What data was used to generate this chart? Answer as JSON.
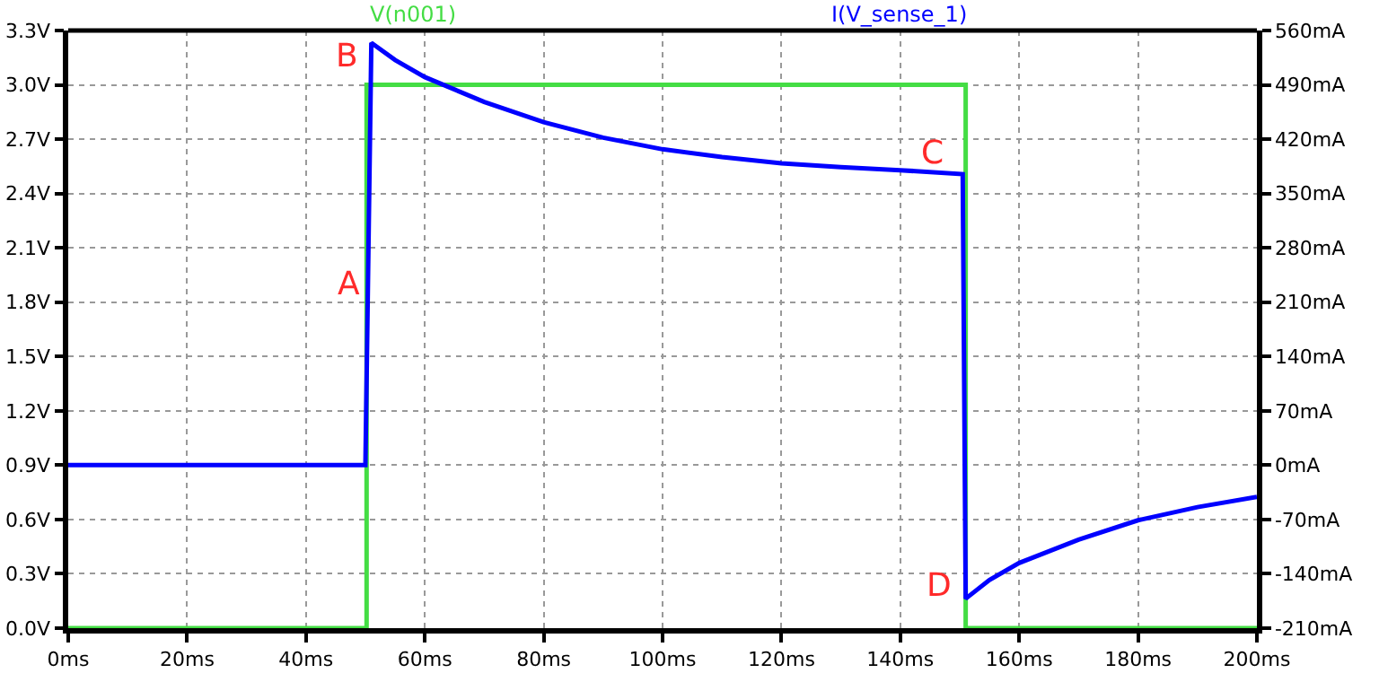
{
  "chart_data": {
    "type": "line",
    "x": [
      0,
      50,
      51,
      55,
      60,
      70,
      80,
      90,
      100,
      110,
      120,
      130,
      140,
      150.5,
      151,
      155,
      160,
      170,
      180,
      190,
      200
    ],
    "series": [
      {
        "name": "V(n001)",
        "color": "#44dd44",
        "x": [
          0,
          50.2,
          50.2,
          151,
          151,
          200
        ],
        "values": [
          0,
          0,
          3.0,
          3.0,
          0,
          0
        ]
      },
      {
        "name": "I(V_sense_1)",
        "color": "#0000ff",
        "axis": "y2",
        "values": [
          0,
          0,
          544,
          522,
          500,
          468,
          442,
          422,
          407,
          397,
          389,
          384,
          380,
          375,
          -172,
          -148,
          -126,
          -96,
          -71,
          -54,
          -41
        ]
      }
    ],
    "xlim": [
      0,
      200
    ],
    "xticks": [
      {
        "value": 0,
        "label": "0ms"
      },
      {
        "value": 20,
        "label": "20ms"
      },
      {
        "value": 40,
        "label": "40ms"
      },
      {
        "value": 60,
        "label": "60ms"
      },
      {
        "value": 80,
        "label": "80ms"
      },
      {
        "value": 100,
        "label": "100ms"
      },
      {
        "value": 120,
        "label": "120ms"
      },
      {
        "value": 140,
        "label": "140ms"
      },
      {
        "value": 160,
        "label": "160ms"
      },
      {
        "value": 180,
        "label": "180ms"
      },
      {
        "value": 200,
        "label": "200ms"
      }
    ],
    "ylim": [
      0,
      3.3
    ],
    "yticks": [
      {
        "value": 0,
        "label": "0.0V"
      },
      {
        "value": 0.3,
        "label": "0.3V"
      },
      {
        "value": 0.6,
        "label": "0.6V"
      },
      {
        "value": 0.9,
        "label": "0.9V"
      },
      {
        "value": 1.2,
        "label": "1.2V"
      },
      {
        "value": 1.5,
        "label": "1.5V"
      },
      {
        "value": 1.8,
        "label": "1.8V"
      },
      {
        "value": 2.1,
        "label": "2.1V"
      },
      {
        "value": 2.4,
        "label": "2.4V"
      },
      {
        "value": 2.7,
        "label": "2.7V"
      },
      {
        "value": 3.0,
        "label": "3.0V"
      },
      {
        "value": 3.3,
        "label": "3.3V"
      }
    ],
    "y2lim": [
      -210,
      560
    ],
    "y2ticks": [
      {
        "value": -210,
        "label": "-210mA"
      },
      {
        "value": -140,
        "label": "-140mA"
      },
      {
        "value": -70,
        "label": "-70mA"
      },
      {
        "value": 0,
        "label": "0mA"
      },
      {
        "value": 70,
        "label": "70mA"
      },
      {
        "value": 140,
        "label": "140mA"
      },
      {
        "value": 210,
        "label": "210mA"
      },
      {
        "value": 280,
        "label": "280mA"
      },
      {
        "value": 350,
        "label": "350mA"
      },
      {
        "value": 420,
        "label": "420mA"
      },
      {
        "value": 490,
        "label": "490mA"
      },
      {
        "value": 560,
        "label": "560mA"
      }
    ],
    "annotations": [
      "A",
      "B",
      "C",
      "D"
    ],
    "grid": true,
    "legend": false,
    "line_style": "solid",
    "marker": "none"
  }
}
